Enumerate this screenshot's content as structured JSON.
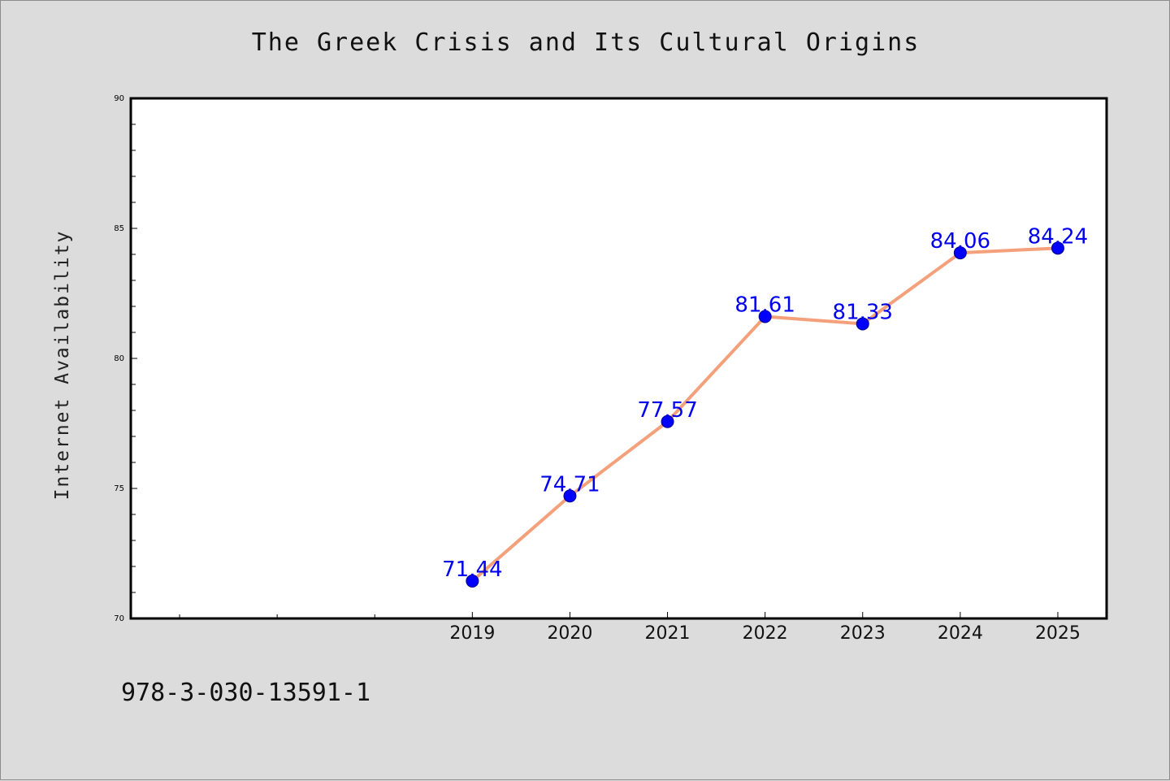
{
  "colors": {
    "background": "#dcdcdc",
    "plot_bg": "#ffffff",
    "line": "#f4a07a",
    "marker": "#0000ff",
    "data_label": "#0000ee"
  },
  "footer": {
    "isbn": "978-3-030-13591-1"
  },
  "chart_data": {
    "type": "line",
    "title": "The Greek Crisis and Its Cultural Origins",
    "xlabel": "",
    "ylabel": "Internet Availability",
    "ylim": [
      70,
      90
    ],
    "yticks": [
      70,
      75,
      80,
      85,
      90
    ],
    "x": [
      2019,
      2020,
      2021,
      2022,
      2023,
      2024,
      2025
    ],
    "xlim": [
      2015.5,
      2025.5
    ],
    "series": [
      {
        "values": [
          71.44,
          74.71,
          77.57,
          81.61,
          81.33,
          84.06,
          84.24
        ],
        "labels": [
          "71.44",
          "74.71",
          "77.57",
          "81.61",
          "81.33",
          "84.06",
          "84.24"
        ]
      }
    ],
    "grid": false,
    "legend": "none"
  }
}
